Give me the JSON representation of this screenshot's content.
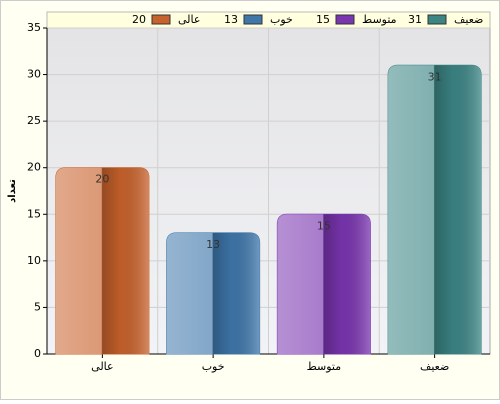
{
  "chart_data": {
    "type": "bar",
    "categories": [
      "عالی",
      "خوب",
      "متوسط",
      "ضعیف"
    ],
    "values": [
      20,
      13,
      15,
      31
    ],
    "colors": [
      "#c8622c",
      "#3f77ab",
      "#7a35b0",
      "#3c8585"
    ],
    "ylabel": "تعداد",
    "ylim": [
      0,
      35
    ],
    "yticks": [
      0,
      5,
      10,
      15,
      20,
      25,
      30,
      35
    ],
    "grid": true
  }
}
